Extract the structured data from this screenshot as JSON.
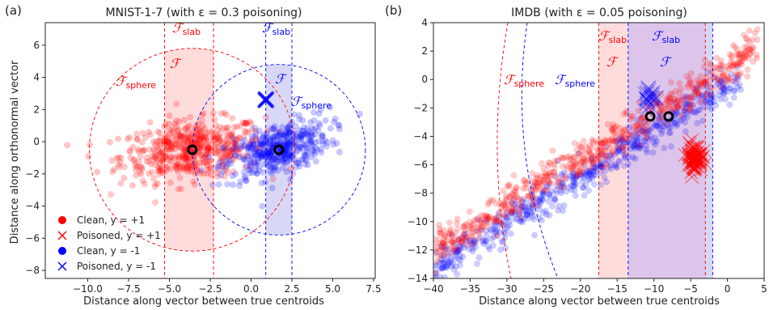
{
  "panels": [
    {
      "panel_label": "(a)",
      "title": "MNIST-1-7 (with ε = 0.3 poisoning)",
      "legend": [
        "Clean, y = +1",
        "Poisoned, y = +1",
        "Clean, y = -1",
        "Poisoned, y = -1"
      ]
    },
    {
      "panel_label": "(b)",
      "title": "IMDB (with ε = 0.05 poisoning)"
    }
  ],
  "colors": {
    "pos": "#ff0000",
    "neg": "#0000ff",
    "slab_pos": "#ffdcdc",
    "slab_neg": "#d8d8f6",
    "overlap": "#dcc4ea"
  },
  "chart_data": [
    {
      "type": "scatter",
      "title": "MNIST-1-7 (with ε = 0.3 poisoning)",
      "xlabel": "Distance along vector between true centroids",
      "ylabel": "Distance along orthonormal vector",
      "xlim": [
        -12.6,
        7.6
      ],
      "ylim": [
        -8.5,
        7.4
      ],
      "xticks": [
        "−10.0",
        "−7.5",
        "−5.0",
        "−2.5",
        "0.0",
        "2.5",
        "5.0",
        "7.5"
      ],
      "yticks": [
        "−8",
        "−6",
        "−4",
        "−2",
        "0",
        "2",
        "4",
        "6"
      ],
      "legend_position": "lower-left",
      "grid": false,
      "series": [
        {
          "name": "Clean, y = +1",
          "marker": "o",
          "cluster_center": [
            -3.6,
            -0.5
          ],
          "spread": [
            2.2,
            0.9
          ],
          "tilt": 0.28
        },
        {
          "name": "Poisoned, y = +1",
          "marker": "x",
          "points": []
        },
        {
          "name": "Clean, y = -1",
          "marker": "o",
          "cluster_center": [
            1.6,
            -0.5
          ],
          "spread": [
            1.6,
            0.8
          ],
          "tilt": 0.9
        },
        {
          "name": "Poisoned, y = -1",
          "marker": "x",
          "points": [
            [
              0.9,
              2.6
            ]
          ]
        }
      ],
      "centroids": [
        [
          -3.6,
          -0.5
        ],
        [
          1.7,
          -0.5
        ]
      ],
      "regions": {
        "slab_pos_x": [
          -5.3,
          -2.3
        ],
        "slab_neg_x": [
          0.9,
          2.5
        ],
        "sphere_pos": {
          "center": [
            -3.6,
            -0.5
          ],
          "radius": 6.3
        },
        "sphere_neg": {
          "center": [
            1.7,
            -0.5
          ],
          "radius": 5.3
        },
        "labels": [
          "𝓕slab",
          "𝓕",
          "𝓕sphere"
        ]
      }
    },
    {
      "type": "scatter",
      "title": "IMDB (with ε = 0.05 poisoning)",
      "xlabel": "Distance along vector between true centroids",
      "xlim": [
        -40,
        5
      ],
      "ylim": [
        -14,
        4
      ],
      "xticks": [
        "−40",
        "−35",
        "−30",
        "−25",
        "−20",
        "−15",
        "−10",
        "−5",
        "0",
        "5"
      ],
      "yticks": [
        "−14",
        "−12",
        "−10",
        "−8",
        "−6",
        "−4",
        "−2",
        "0",
        "2",
        "4"
      ],
      "grid": false,
      "series": [
        {
          "name": "Clean, y = +1",
          "marker": "o",
          "band": "upper",
          "x_range": [
            -40,
            4
          ]
        },
        {
          "name": "Poisoned, y = +1",
          "marker": "x",
          "cluster": [
            -4.5,
            -5.5
          ]
        },
        {
          "name": "Clean, y = -1",
          "marker": "o",
          "band": "lower",
          "x_range": [
            -40,
            2
          ]
        },
        {
          "name": "Poisoned, y = -1",
          "marker": "x",
          "cluster": [
            -10.5,
            -1.5
          ]
        }
      ],
      "centroids": [
        [
          -10.5,
          -2.6
        ],
        [
          -8.0,
          -2.6
        ]
      ],
      "regions": {
        "slab_pos_x": [
          -17.5,
          -3.0
        ],
        "slab_neg_x": [
          -13.5,
          -2.0
        ],
        "sphere_pos": {
          "center": [
            -10.5,
            -2.6
          ],
          "radius": 40
        },
        "sphere_neg": {
          "center": [
            -8.0,
            -2.6
          ],
          "radius": 40
        }
      }
    }
  ]
}
